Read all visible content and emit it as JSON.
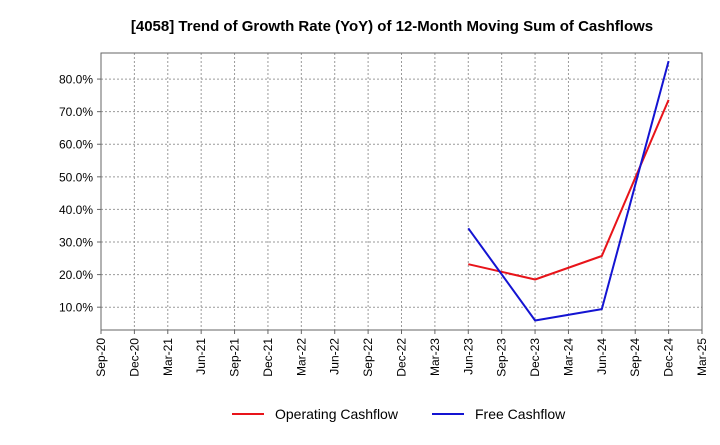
{
  "chart_data": {
    "type": "line",
    "title": "[4058]  Trend of Growth Rate (YoY) of 12-Month Moving Sum of Cashflows",
    "xlabel": "",
    "ylabel": "",
    "x": [
      "Sep-20",
      "Dec-20",
      "Mar-21",
      "Jun-21",
      "Sep-21",
      "Dec-21",
      "Mar-22",
      "Jun-22",
      "Sep-22",
      "Dec-22",
      "Mar-23",
      "Jun-23",
      "Sep-23",
      "Dec-23",
      "Mar-24",
      "Jun-24",
      "Sep-24",
      "Dec-24",
      "Mar-25"
    ],
    "yticks": [
      "10.0%",
      "20.0%",
      "30.0%",
      "40.0%",
      "50.0%",
      "60.0%",
      "70.0%",
      "80.0%"
    ],
    "ytick_values": [
      10,
      20,
      30,
      40,
      50,
      60,
      70,
      80
    ],
    "ylim": [
      3,
      88
    ],
    "grid": true,
    "legend_position": "bottom-center",
    "series": [
      {
        "name": "Operating Cashflow",
        "color": "#e8141a",
        "values": [
          null,
          null,
          null,
          null,
          null,
          null,
          null,
          null,
          null,
          null,
          null,
          23.2,
          null,
          18.5,
          null,
          25.7,
          null,
          73.6,
          null
        ]
      },
      {
        "name": "Free Cashflow",
        "color": "#1414d2",
        "values": [
          null,
          null,
          null,
          null,
          null,
          null,
          null,
          null,
          null,
          null,
          null,
          34.2,
          null,
          5.9,
          null,
          9.4,
          null,
          85.5,
          null
        ]
      }
    ]
  }
}
